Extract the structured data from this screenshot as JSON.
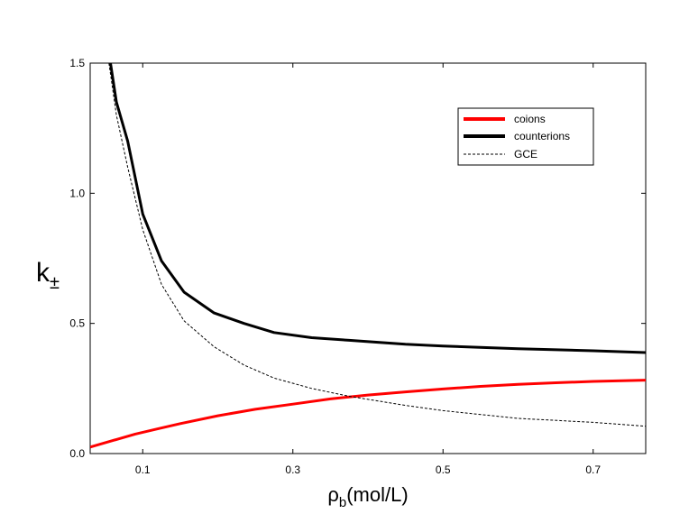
{
  "chart_data": {
    "type": "line",
    "title": "",
    "xlabel": {
      "main": "ρ",
      "sub": "b",
      "rest": "(mol/L)"
    },
    "ylabel": {
      "main": "k",
      "sub": "±"
    },
    "xlim": [
      0.03,
      0.77
    ],
    "ylim": [
      0.0,
      1.5
    ],
    "xticks": [
      0.1,
      0.3,
      0.5,
      0.7
    ],
    "xtick_labels": [
      "0.1",
      "0.3",
      "0.5",
      "0.7"
    ],
    "yticks": [
      0.0,
      0.5,
      1.0,
      1.5
    ],
    "ytick_labels": [
      "0.0",
      "0.5",
      "1.0",
      "1.5"
    ],
    "grid": false,
    "legend_position": "top-right",
    "series": [
      {
        "name": "coions",
        "color": "#ff0000",
        "style": "solid-thick",
        "x": [
          0.03,
          0.06,
          0.09,
          0.12,
          0.15,
          0.2,
          0.25,
          0.3,
          0.35,
          0.4,
          0.45,
          0.5,
          0.55,
          0.6,
          0.65,
          0.7,
          0.77
        ],
        "y": [
          0.025,
          0.05,
          0.075,
          0.095,
          0.115,
          0.145,
          0.17,
          0.19,
          0.21,
          0.225,
          0.237,
          0.248,
          0.258,
          0.266,
          0.272,
          0.277,
          0.282
        ]
      },
      {
        "name": "counterions",
        "color": "#000000",
        "style": "solid-thick",
        "x": [
          0.057,
          0.065,
          0.08,
          0.1,
          0.125,
          0.155,
          0.195,
          0.235,
          0.275,
          0.325,
          0.375,
          0.45,
          0.5,
          0.6,
          0.7,
          0.77
        ],
        "y": [
          1.5,
          1.35,
          1.2,
          0.92,
          0.74,
          0.62,
          0.54,
          0.5,
          0.465,
          0.445,
          0.435,
          0.42,
          0.413,
          0.403,
          0.395,
          0.388
        ]
      },
      {
        "name": "GCE",
        "color": "#000000",
        "style": "dashed-thin",
        "x": [
          0.055,
          0.065,
          0.08,
          0.1,
          0.125,
          0.155,
          0.195,
          0.235,
          0.275,
          0.325,
          0.375,
          0.45,
          0.5,
          0.6,
          0.7,
          0.77
        ],
        "y": [
          1.5,
          1.3,
          1.1,
          0.86,
          0.65,
          0.51,
          0.41,
          0.34,
          0.29,
          0.25,
          0.22,
          0.185,
          0.165,
          0.135,
          0.12,
          0.105
        ]
      }
    ]
  }
}
